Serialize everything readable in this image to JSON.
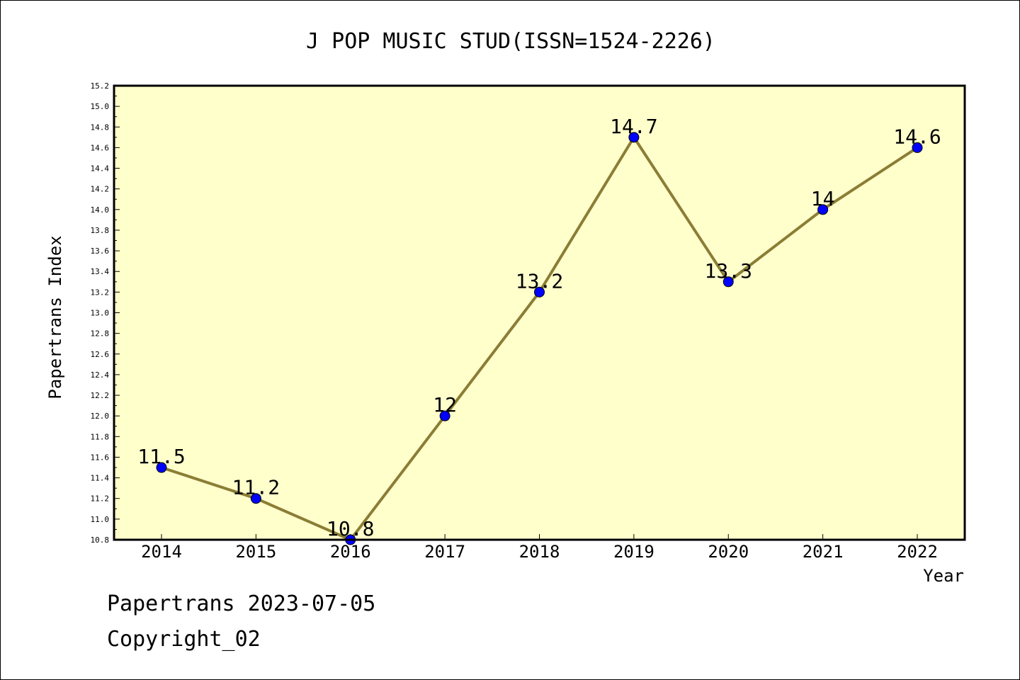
{
  "chart_data": {
    "type": "line",
    "title": "J POP MUSIC STUD(ISSN=1524-2226)",
    "xlabel": "Year",
    "ylabel": "Papertrans Index",
    "categories": [
      "2014",
      "2015",
      "2016",
      "2017",
      "2018",
      "2019",
      "2020",
      "2021",
      "2022"
    ],
    "series": [
      {
        "values": [
          11.5,
          11.2,
          10.8,
          12,
          13.2,
          14.7,
          13.3,
          14,
          14.6
        ],
        "data_labels": [
          "11.5",
          "11.2",
          "10.8",
          "12",
          "13.2",
          "14.7",
          "13.3",
          "14",
          "14.6"
        ],
        "line_color": "#8B7D35",
        "marker_color": "#0000FF"
      }
    ],
    "ylim": [
      10.8,
      15.2
    ],
    "yticks": [
      "10.8",
      "11.0",
      "11.2",
      "11.4",
      "11.6",
      "11.8",
      "12.0",
      "12.2",
      "12.4",
      "12.6",
      "12.8",
      "13.0",
      "13.2",
      "13.4",
      "13.6",
      "13.8",
      "14.0",
      "14.2",
      "14.4",
      "14.6",
      "14.8",
      "15.0",
      "15.2"
    ],
    "plot_background": "#FFFFCC",
    "grid": false,
    "legend": false
  },
  "footer": {
    "date_line": "Papertrans 2023-07-05",
    "copyright_line": "Copyright_02"
  }
}
